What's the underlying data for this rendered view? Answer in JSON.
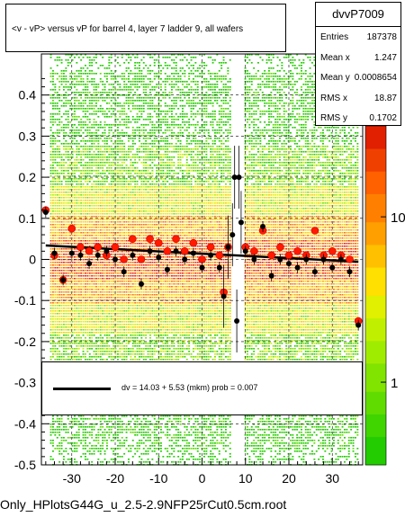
{
  "title": "<v - vP>       versus   vP for barrel 4, layer 7 ladder 9, all wafers",
  "stats": {
    "name": "dvvP7009",
    "rows": [
      {
        "key": "Entries",
        "value": "187378"
      },
      {
        "key": "Mean x",
        "value": "1.247"
      },
      {
        "key": "Mean y",
        "value": "0.0008654"
      },
      {
        "key": "RMS x",
        "value": "18.87"
      },
      {
        "key": "RMS y",
        "value": "0.1702"
      }
    ]
  },
  "fit_legend": "dv =   14.03 +   5.53 (mkm) prob = 0.007",
  "bottom_label": "Only_HPlotsG44G_u_2.5-2.9NFP25rCut0.5cm.root",
  "chart_data": {
    "type": "heatmap",
    "xlim": [
      -37,
      37
    ],
    "ylim": [
      -0.5,
      0.5
    ],
    "x_ticks": [
      -30,
      -20,
      -10,
      0,
      10,
      20,
      30
    ],
    "y_ticks": [
      0.4,
      0.3,
      0.2,
      0.1,
      0,
      -0.1,
      -0.2,
      -0.3,
      -0.4,
      -0.5
    ],
    "y_tick_labels": [
      "0.4",
      "0.3",
      "0.2",
      "0.1",
      "0",
      "-0.1",
      "-0.2",
      "-0.3",
      "-0.4",
      "-0.5"
    ],
    "colorbar_ticks": [
      {
        "value": 1,
        "label": "1"
      },
      {
        "value": 10,
        "label": "10"
      }
    ],
    "gap_x": [
      6.5,
      9.5
    ],
    "fit": {
      "intercept": 0.014,
      "slope": -0.00055
    },
    "profile_black": [
      {
        "x": -36,
        "y": 0.115
      },
      {
        "x": -34,
        "y": 0.015
      },
      {
        "x": -32,
        "y": -0.05
      },
      {
        "x": -30,
        "y": 0.015
      },
      {
        "x": -28,
        "y": 0.01
      },
      {
        "x": -26,
        "y": -0.01
      },
      {
        "x": -24,
        "y": 0.01
      },
      {
        "x": -22,
        "y": 0.02
      },
      {
        "x": -20,
        "y": 0.0
      },
      {
        "x": -18,
        "y": -0.03
      },
      {
        "x": -16,
        "y": 0.01
      },
      {
        "x": -14,
        "y": -0.06
      },
      {
        "x": -12,
        "y": 0.02
      },
      {
        "x": -10,
        "y": 0.005
      },
      {
        "x": -8,
        "y": -0.025
      },
      {
        "x": -6,
        "y": 0.02
      },
      {
        "x": -4,
        "y": 0.0
      },
      {
        "x": -2,
        "y": 0.015
      },
      {
        "x": 0,
        "y": -0.02
      },
      {
        "x": 2,
        "y": 0.01
      },
      {
        "x": 4,
        "y": -0.02
      },
      {
        "x": 5,
        "y": -0.09
      },
      {
        "x": 6,
        "y": 0.03
      },
      {
        "x": 7,
        "y": 0.06
      },
      {
        "x": 7.5,
        "y": 0.2
      },
      {
        "x": 8,
        "y": -0.15
      },
      {
        "x": 8.5,
        "y": 0.2
      },
      {
        "x": 9,
        "y": 0.09
      },
      {
        "x": 10,
        "y": 0.02
      },
      {
        "x": 12,
        "y": 0.0
      },
      {
        "x": 14,
        "y": 0.08
      },
      {
        "x": 16,
        "y": -0.04
      },
      {
        "x": 18,
        "y": 0.0
      },
      {
        "x": 20,
        "y": -0.01
      },
      {
        "x": 22,
        "y": -0.02
      },
      {
        "x": 24,
        "y": 0.0
      },
      {
        "x": 26,
        "y": -0.03
      },
      {
        "x": 28,
        "y": 0.0
      },
      {
        "x": 30,
        "y": -0.02
      },
      {
        "x": 32,
        "y": 0.0
      },
      {
        "x": 34,
        "y": -0.03
      },
      {
        "x": 36,
        "y": -0.16
      }
    ],
    "profile_red": [
      {
        "x": -36,
        "y": 0.12
      },
      {
        "x": -34,
        "y": 0.01
      },
      {
        "x": -32,
        "y": -0.05
      },
      {
        "x": -30,
        "y": 0.075
      },
      {
        "x": -28,
        "y": 0.03
      },
      {
        "x": -26,
        "y": 0.02
      },
      {
        "x": -24,
        "y": 0.03
      },
      {
        "x": -22,
        "y": 0.01
      },
      {
        "x": -20,
        "y": 0.03
      },
      {
        "x": -18,
        "y": 0.0
      },
      {
        "x": -16,
        "y": 0.05
      },
      {
        "x": -14,
        "y": 0.0
      },
      {
        "x": -12,
        "y": 0.05
      },
      {
        "x": -10,
        "y": 0.04
      },
      {
        "x": -8,
        "y": 0.02
      },
      {
        "x": -6,
        "y": 0.05
      },
      {
        "x": -4,
        "y": 0.02
      },
      {
        "x": -2,
        "y": 0.04
      },
      {
        "x": 0,
        "y": 0.0
      },
      {
        "x": 2,
        "y": 0.03
      },
      {
        "x": 4,
        "y": 0.01
      },
      {
        "x": 5,
        "y": -0.08
      },
      {
        "x": 6,
        "y": 0.03
      },
      {
        "x": 10,
        "y": 0.03
      },
      {
        "x": 12,
        "y": 0.02
      },
      {
        "x": 14,
        "y": 0.07
      },
      {
        "x": 16,
        "y": 0.01
      },
      {
        "x": 18,
        "y": 0.03
      },
      {
        "x": 20,
        "y": 0.01
      },
      {
        "x": 22,
        "y": 0.02
      },
      {
        "x": 24,
        "y": 0.01
      },
      {
        "x": 26,
        "y": 0.07
      },
      {
        "x": 28,
        "y": 0.01
      },
      {
        "x": 30,
        "y": 0.02
      },
      {
        "x": 32,
        "y": 0.01
      },
      {
        "x": 34,
        "y": 0.0
      },
      {
        "x": 36,
        "y": -0.15
      }
    ]
  }
}
